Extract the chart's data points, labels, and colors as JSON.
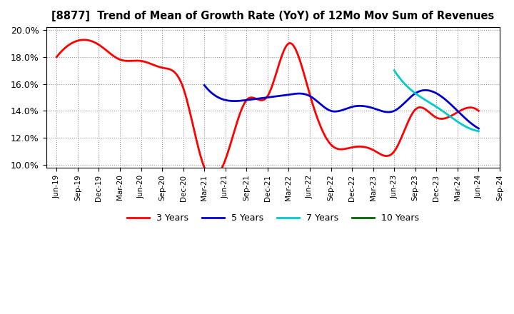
{
  "title": "[8877]  Trend of Mean of Growth Rate (YoY) of 12Mo Mov Sum of Revenues",
  "ylim": [
    0.098,
    0.202
  ],
  "yticks": [
    0.1,
    0.12,
    0.14,
    0.16,
    0.18,
    0.2
  ],
  "ytick_labels": [
    "10.0%",
    "12.0%",
    "14.0%",
    "16.0%",
    "18.0%",
    "20.0%"
  ],
  "background_color": "#ffffff",
  "grid_color": "#aaaaaa",
  "series": {
    "3 Years": {
      "color": "#ff0000",
      "x_idx": [
        0,
        1,
        2,
        3,
        4,
        5,
        6,
        7,
        8,
        9,
        10,
        11,
        12,
        13,
        14,
        15,
        16,
        17,
        18,
        19,
        20
      ],
      "y": [
        0.18,
        0.192,
        0.189,
        0.178,
        0.177,
        0.172,
        0.157,
        0.098,
        0.104,
        0.148,
        0.151,
        0.19,
        0.152,
        0.115,
        0.113,
        0.111,
        0.11,
        0.141,
        0.135,
        0.139,
        0.14
      ]
    },
    "5 Years": {
      "color": "#0000cc",
      "x_idx": [
        7,
        8,
        9,
        10,
        11,
        12,
        13,
        14,
        15,
        16,
        17,
        18,
        19,
        20
      ],
      "y": [
        0.159,
        0.148,
        0.148,
        0.15,
        0.152,
        0.151,
        0.14,
        0.143,
        0.142,
        0.14,
        0.153,
        0.153,
        0.14,
        0.127
      ]
    },
    "7 Years": {
      "color": "#00cccc",
      "x_idx": [
        16,
        17,
        18,
        19,
        20
      ],
      "y": [
        0.17,
        0.153,
        0.143,
        0.132,
        0.125
      ]
    },
    "10 Years": {
      "color": "#006600",
      "x_idx": [],
      "y": []
    }
  },
  "xtick_labels": [
    "Jun-19",
    "Sep-19",
    "Dec-19",
    "Mar-20",
    "Jun-20",
    "Sep-20",
    "Dec-20",
    "Mar-21",
    "Jun-21",
    "Sep-21",
    "Dec-21",
    "Mar-22",
    "Jun-22",
    "Sep-22",
    "Dec-22",
    "Mar-23",
    "Jun-23",
    "Sep-23",
    "Dec-23",
    "Mar-24",
    "Jun-24",
    "Sep-24"
  ],
  "legend": [
    {
      "label": "3 Years",
      "color": "#ff0000"
    },
    {
      "label": "5 Years",
      "color": "#0000cc"
    },
    {
      "label": "7 Years",
      "color": "#00cccc"
    },
    {
      "label": "10 Years",
      "color": "#006600"
    }
  ]
}
